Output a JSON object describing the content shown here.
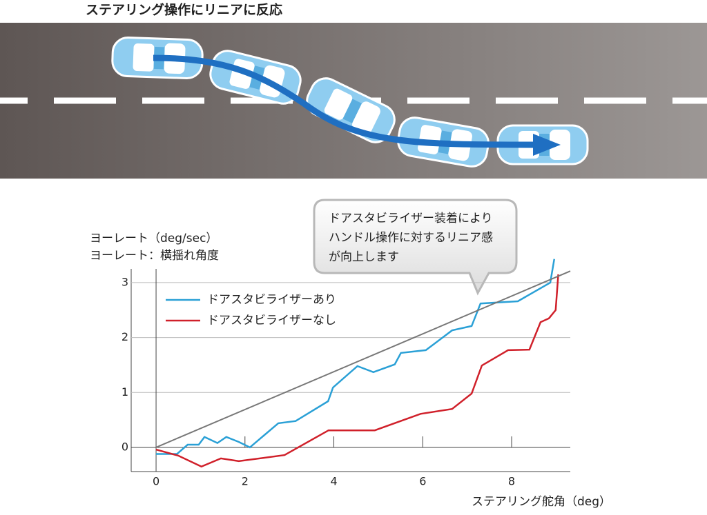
{
  "header": {
    "title": "ステアリング操作にリニアに反応"
  },
  "chart_data": {
    "type": "line",
    "y_label": [
      "ヨーレート（deg/sec）",
      "ヨーレート：横揺れ角度"
    ],
    "x_label": "ステアリング舵角（deg）",
    "annotation": [
      "ドアスタビライザー装着により",
      "ハンドル操作に対するリニア感",
      "が向上します"
    ],
    "xlim": [
      -0.56,
      9.32
    ],
    "ylim": [
      -0.44,
      3.25
    ],
    "xticks": [
      0,
      2,
      4,
      6,
      8
    ],
    "yticks": [
      0,
      1,
      2,
      3
    ],
    "grid": true,
    "series": [
      {
        "name": "ドアスタビライザーあり",
        "color": "#2aa0d6",
        "x": [
          0,
          0.47,
          0.71,
          0.96,
          1.09,
          1.38,
          1.58,
          1.86,
          2.11,
          2.75,
          3.14,
          3.87,
          3.98,
          4.53,
          4.89,
          5.37,
          5.51,
          6.07,
          6.66,
          7.1,
          7.3,
          8.14,
          8.87,
          8.96
        ],
        "values": [
          -0.12,
          -0.12,
          0.05,
          0.05,
          0.19,
          0.08,
          0.19,
          0.1,
          0,
          0.44,
          0.48,
          0.84,
          1.09,
          1.48,
          1.37,
          1.51,
          1.72,
          1.77,
          2.13,
          2.21,
          2.62,
          2.66,
          3.0,
          3.43
        ]
      },
      {
        "name": "ドアスタビライザーなし",
        "color": "#d0202a",
        "x": [
          0,
          0.5,
          1.02,
          1.46,
          1.86,
          2.89,
          3.88,
          4.92,
          5.95,
          6.66,
          7.1,
          7.33,
          7.92,
          8.4,
          8.65,
          8.84,
          8.99,
          9.05
        ],
        "values": [
          -0.04,
          -0.15,
          -0.35,
          -0.2,
          -0.25,
          -0.14,
          0.31,
          0.31,
          0.61,
          0.7,
          0.98,
          1.49,
          1.77,
          1.78,
          2.28,
          2.35,
          2.5,
          3.15
        ]
      },
      {
        "color": "#777777",
        "x": [
          0,
          9.32
        ],
        "values": [
          0,
          3.21
        ]
      }
    ]
  }
}
